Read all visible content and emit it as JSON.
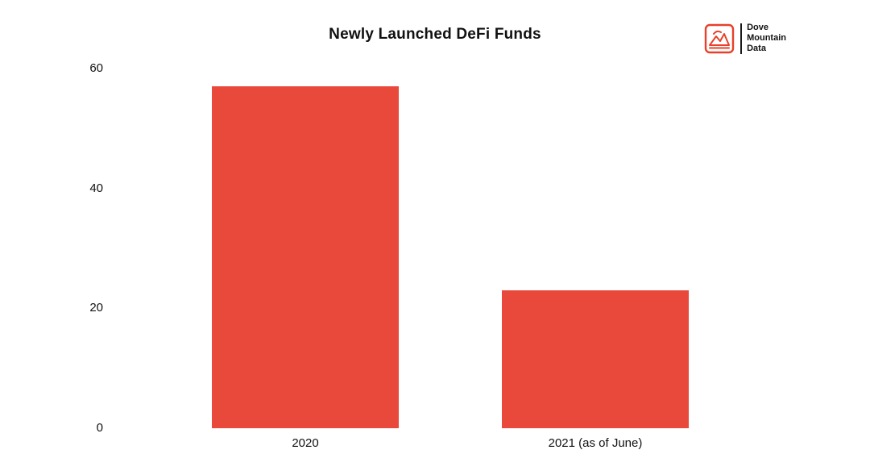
{
  "title": "Newly Launched DeFi Funds",
  "logo": {
    "icon": "dove-mountain-logo-icon",
    "line1": "Dove",
    "line2": "Mountain",
    "line3": "Data"
  },
  "colors": {
    "bar": "#E8493B",
    "logo_red": "#E8402A",
    "text": "#111111"
  },
  "chart_data": {
    "type": "bar",
    "title": "Newly Launched DeFi Funds",
    "categories": [
      "2020",
      "2021 (as of June)"
    ],
    "values": [
      57,
      23
    ],
    "xlabel": "",
    "ylabel": "",
    "ylim": [
      0,
      60
    ],
    "yticks": [
      0,
      20,
      40,
      60
    ],
    "bar_color": "#E8493B",
    "grid": false,
    "legend": "none"
  }
}
